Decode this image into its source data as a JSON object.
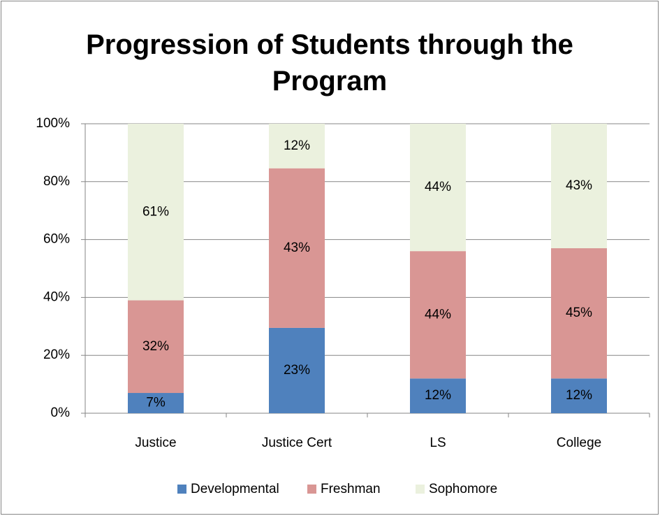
{
  "chart_data": {
    "type": "bar",
    "stacking": "percent",
    "title": "Progression of Students through the Program",
    "categories": [
      "Justice",
      "Justice Cert",
      "LS",
      "College"
    ],
    "series": [
      {
        "name": "Developmental",
        "color": "#4f81bd",
        "values": [
          7,
          23,
          12,
          12
        ],
        "value_labels": [
          "7%",
          "23%",
          "12%",
          "12%"
        ]
      },
      {
        "name": "Freshman",
        "color": "#d99694",
        "values": [
          32,
          43,
          44,
          45
        ],
        "value_labels": [
          "32%",
          "43%",
          "44%",
          "45%"
        ]
      },
      {
        "name": "Sophomore",
        "color": "#ebf1de",
        "values": [
          61,
          12,
          44,
          43
        ],
        "value_labels": [
          "61%",
          "12%",
          "44%",
          "43%"
        ]
      }
    ],
    "ylim": [
      0,
      100
    ],
    "yticks": [
      {
        "value": 0,
        "label": "0%"
      },
      {
        "value": 20,
        "label": "20%"
      },
      {
        "value": 40,
        "label": "40%"
      },
      {
        "value": 60,
        "label": "60%"
      },
      {
        "value": 80,
        "label": "80%"
      },
      {
        "value": 100,
        "label": "100%"
      }
    ],
    "grid": true,
    "legend": "bottom"
  }
}
